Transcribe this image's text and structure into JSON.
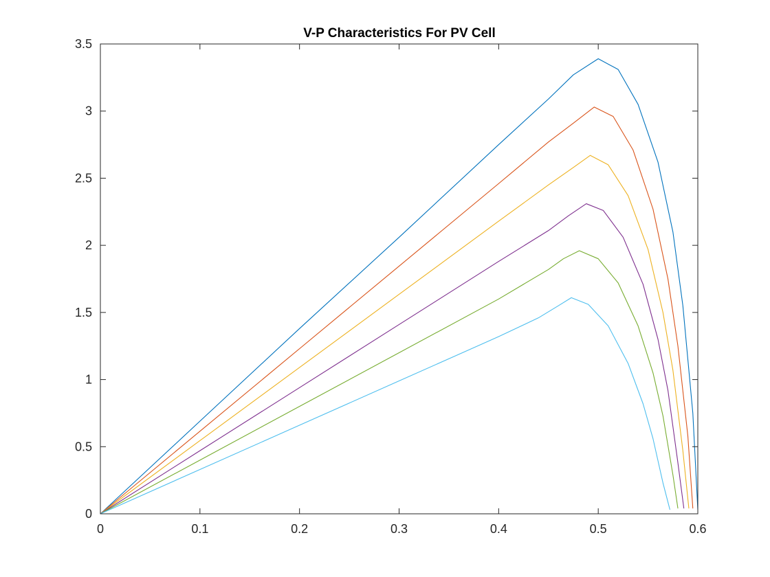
{
  "chart_data": {
    "type": "line",
    "title": "V-P Characteristics For PV Cell",
    "xlabel": "",
    "ylabel": "",
    "xlim": [
      0,
      0.6
    ],
    "ylim": [
      0,
      3.5
    ],
    "xticks": [
      "0",
      "0.1",
      "0.2",
      "0.3",
      "0.4",
      "0.5",
      "0.6"
    ],
    "yticks": [
      "0",
      "0.5",
      "1",
      "1.5",
      "2",
      "2.5",
      "3",
      "3.5"
    ],
    "grid": false,
    "legend": "none",
    "series": [
      {
        "color": "#0072BD",
        "points": [
          [
            0,
            0
          ],
          [
            0.1,
            0.69
          ],
          [
            0.2,
            1.38
          ],
          [
            0.3,
            2.06
          ],
          [
            0.4,
            2.75
          ],
          [
            0.45,
            3.09
          ],
          [
            0.475,
            3.27
          ],
          [
            0.5,
            3.39
          ],
          [
            0.52,
            3.31
          ],
          [
            0.54,
            3.05
          ],
          [
            0.56,
            2.62
          ],
          [
            0.575,
            2.1
          ],
          [
            0.585,
            1.55
          ],
          [
            0.595,
            0.75
          ],
          [
            0.6,
            0.03
          ]
        ]
      },
      {
        "color": "#D95319",
        "points": [
          [
            0,
            0
          ],
          [
            0.1,
            0.615
          ],
          [
            0.2,
            1.23
          ],
          [
            0.3,
            1.845
          ],
          [
            0.4,
            2.46
          ],
          [
            0.45,
            2.77
          ],
          [
            0.475,
            2.91
          ],
          [
            0.496,
            3.03
          ],
          [
            0.515,
            2.96
          ],
          [
            0.535,
            2.71
          ],
          [
            0.555,
            2.27
          ],
          [
            0.57,
            1.75
          ],
          [
            0.58,
            1.25
          ],
          [
            0.59,
            0.58
          ],
          [
            0.595,
            0.04
          ]
        ]
      },
      {
        "color": "#EDB120",
        "points": [
          [
            0,
            0
          ],
          [
            0.1,
            0.545
          ],
          [
            0.2,
            1.09
          ],
          [
            0.3,
            1.635
          ],
          [
            0.4,
            2.18
          ],
          [
            0.45,
            2.45
          ],
          [
            0.475,
            2.58
          ],
          [
            0.492,
            2.67
          ],
          [
            0.51,
            2.6
          ],
          [
            0.53,
            2.37
          ],
          [
            0.55,
            1.97
          ],
          [
            0.565,
            1.5
          ],
          [
            0.575,
            1.07
          ],
          [
            0.585,
            0.47
          ],
          [
            0.591,
            0.04
          ]
        ]
      },
      {
        "color": "#7E2F8E",
        "points": [
          [
            0,
            0
          ],
          [
            0.1,
            0.47
          ],
          [
            0.2,
            0.94
          ],
          [
            0.3,
            1.41
          ],
          [
            0.4,
            1.88
          ],
          [
            0.45,
            2.11
          ],
          [
            0.47,
            2.22
          ],
          [
            0.488,
            2.31
          ],
          [
            0.505,
            2.26
          ],
          [
            0.525,
            2.06
          ],
          [
            0.545,
            1.71
          ],
          [
            0.56,
            1.3
          ],
          [
            0.57,
            0.92
          ],
          [
            0.58,
            0.38
          ],
          [
            0.586,
            0.04
          ]
        ]
      },
      {
        "color": "#77AC30",
        "points": [
          [
            0,
            0
          ],
          [
            0.1,
            0.4
          ],
          [
            0.2,
            0.8
          ],
          [
            0.3,
            1.2
          ],
          [
            0.4,
            1.6
          ],
          [
            0.45,
            1.82
          ],
          [
            0.465,
            1.9
          ],
          [
            0.481,
            1.96
          ],
          [
            0.5,
            1.9
          ],
          [
            0.52,
            1.72
          ],
          [
            0.54,
            1.4
          ],
          [
            0.555,
            1.05
          ],
          [
            0.565,
            0.73
          ],
          [
            0.575,
            0.29
          ],
          [
            0.58,
            0.04
          ]
        ]
      },
      {
        "color": "#4DBEEE",
        "points": [
          [
            0,
            0
          ],
          [
            0.1,
            0.33
          ],
          [
            0.2,
            0.66
          ],
          [
            0.3,
            0.99
          ],
          [
            0.4,
            1.32
          ],
          [
            0.44,
            1.46
          ],
          [
            0.46,
            1.55
          ],
          [
            0.473,
            1.61
          ],
          [
            0.49,
            1.56
          ],
          [
            0.51,
            1.4
          ],
          [
            0.53,
            1.12
          ],
          [
            0.545,
            0.82
          ],
          [
            0.555,
            0.56
          ],
          [
            0.565,
            0.23
          ],
          [
            0.572,
            0.03
          ]
        ]
      }
    ]
  }
}
